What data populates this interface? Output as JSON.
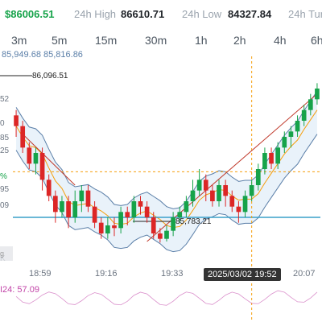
{
  "stats": {
    "price": "$86006.51",
    "high_label": "24h High",
    "high_value": "86610.71",
    "low_label": "24h Low",
    "low_value": "84327.84",
    "turnover_label": "24h Tur"
  },
  "tabs": [
    "3m",
    "5m",
    "15m",
    "30m",
    "1h",
    "2h",
    "4h",
    "6h"
  ],
  "bollinger_text": "85,949.68 85,816.86",
  "chart": {
    "max_label": "86,096.51",
    "min_label": "85,783.21",
    "x_labels": [
      "18:59",
      "19:16",
      "19:33",
      "20:07"
    ],
    "cursor_time": "2025/03/02 19:52",
    "left_labels": [
      "52",
      "0",
      "85",
      "25",
      "%",
      "95",
      "09",
      "K"
    ],
    "bottom_left_fade": "g",
    "rsi_label": "I24: 57.09"
  },
  "colors": {
    "up": "#16a34a",
    "down": "#dc2626",
    "accent": "#f59e0b",
    "band": "#5b7fa8",
    "rsi": "#c244a8"
  },
  "chart_data": {
    "type": "candlestick",
    "title": "",
    "y_range": [
      85740,
      86130
    ],
    "candles": [
      [
        86020,
        86000,
        86030,
        85980
      ],
      [
        86000,
        85960,
        86010,
        85950
      ],
      [
        85960,
        85930,
        85970,
        85920
      ],
      [
        85930,
        85950,
        85960,
        85910
      ],
      [
        85950,
        85900,
        85960,
        85880
      ],
      [
        85900,
        85870,
        85910,
        85860
      ],
      [
        85870,
        85840,
        85880,
        85820
      ],
      [
        85840,
        85860,
        85870,
        85830
      ],
      [
        85860,
        85830,
        85870,
        85810
      ],
      [
        85830,
        85860,
        85880,
        85820
      ],
      [
        85860,
        85880,
        85890,
        85840
      ],
      [
        85880,
        85850,
        85890,
        85840
      ],
      [
        85850,
        85820,
        85860,
        85810
      ],
      [
        85820,
        85800,
        85830,
        85790
      ],
      [
        85800,
        85815,
        85830,
        85790
      ],
      [
        85815,
        85810,
        85830,
        85795
      ],
      [
        85810,
        85840,
        85850,
        85800
      ],
      [
        85840,
        85830,
        85850,
        85815
      ],
      [
        85830,
        85860,
        85870,
        85820
      ],
      [
        85860,
        85850,
        85870,
        85835
      ],
      [
        85850,
        85830,
        85860,
        85820
      ],
      [
        85830,
        85800,
        85840,
        85790
      ],
      [
        85800,
        85790,
        85810,
        85783
      ],
      [
        85790,
        85805,
        85815,
        85785
      ],
      [
        85805,
        85830,
        85840,
        85795
      ],
      [
        85830,
        85840,
        85850,
        85820
      ],
      [
        85840,
        85860,
        85870,
        85830
      ],
      [
        85860,
        85880,
        85900,
        85850
      ],
      [
        85880,
        85900,
        85920,
        85870
      ],
      [
        85900,
        85880,
        85910,
        85860
      ],
      [
        85880,
        85860,
        85890,
        85850
      ],
      [
        85860,
        85890,
        85900,
        85850
      ],
      [
        85890,
        85870,
        85900,
        85850
      ],
      [
        85870,
        85850,
        85880,
        85840
      ],
      [
        85850,
        85840,
        85860,
        85820
      ],
      [
        85840,
        85870,
        85880,
        85830
      ],
      [
        85870,
        85890,
        85900,
        85860
      ],
      [
        85890,
        85920,
        85930,
        85880
      ],
      [
        85920,
        85950,
        85960,
        85910
      ],
      [
        85950,
        85930,
        85960,
        85920
      ],
      [
        85930,
        85960,
        85970,
        85920
      ],
      [
        85960,
        85980,
        85990,
        85950
      ],
      [
        85980,
        85990,
        86000,
        85960
      ],
      [
        85990,
        86010,
        86020,
        85980
      ],
      [
        86010,
        86030,
        86040,
        86000
      ],
      [
        86030,
        86050,
        86060,
        86020
      ],
      [
        86050,
        86070,
        86080,
        86040
      ]
    ]
  }
}
